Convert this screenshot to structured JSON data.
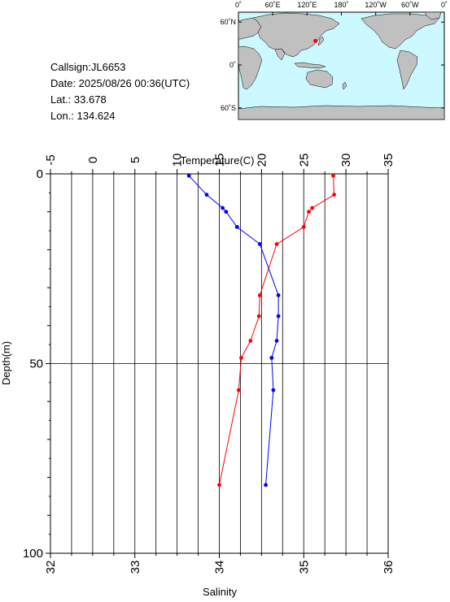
{
  "station": {
    "callsign": "Callsign:JL6653",
    "date": "Date:  2025/08/26 00:36(UTC)",
    "lat": "Lat.:  33.678",
    "lon": "Lon.:  134.624"
  },
  "map": {
    "ocean_color": "#ccf8ff",
    "land_color": "#c0c0c0",
    "marker_color": "#ff0000",
    "lon_ticks": [
      "0˚",
      "60˚E",
      "120˚E",
      "180˚",
      "120˚W",
      "60˚W",
      "0˚"
    ],
    "lat_ticks": [
      "60˚N",
      "0˚",
      "60˚S"
    ],
    "marker": {
      "lat": 33.678,
      "lon": 134.624
    }
  },
  "chart_data": {
    "type": "line",
    "temperature_axis": {
      "label": "Temperature(C)",
      "range": [
        -5,
        35
      ],
      "ticks": [
        -5,
        0,
        5,
        10,
        15,
        20,
        25,
        30,
        35
      ]
    },
    "salinity_axis": {
      "label": "Salinity",
      "range": [
        32,
        36
      ],
      "ticks": [
        32,
        33,
        34,
        35,
        36
      ]
    },
    "depth_axis": {
      "label": "Depth(m)",
      "range": [
        0,
        100
      ],
      "ticks": [
        0,
        50,
        100
      ],
      "inverted": true
    },
    "grid": true,
    "series": [
      {
        "quantity": "temperature",
        "color": "#ff0000",
        "points": [
          {
            "x": 28.5,
            "depth": 0.5
          },
          {
            "x": 28.6,
            "depth": 5.5
          },
          {
            "x": 26.0,
            "depth": 9.0
          },
          {
            "x": 25.6,
            "depth": 10.0
          },
          {
            "x": 25.0,
            "depth": 14.0
          },
          {
            "x": 21.8,
            "depth": 18.5
          },
          {
            "x": 19.8,
            "depth": 32.0
          },
          {
            "x": 19.7,
            "depth": 37.5
          },
          {
            "x": 18.7,
            "depth": 44.0
          },
          {
            "x": 17.6,
            "depth": 48.5
          },
          {
            "x": 17.3,
            "depth": 57.0
          },
          {
            "x": 15.0,
            "depth": 82.0
          }
        ]
      },
      {
        "quantity": "salinity",
        "color": "#0000ff",
        "points": [
          {
            "x": 33.64,
            "depth": 0.5
          },
          {
            "x": 33.85,
            "depth": 5.5
          },
          {
            "x": 34.04,
            "depth": 9.0
          },
          {
            "x": 34.08,
            "depth": 10.0
          },
          {
            "x": 34.21,
            "depth": 14.0
          },
          {
            "x": 34.48,
            "depth": 18.5
          },
          {
            "x": 34.7,
            "depth": 32.0
          },
          {
            "x": 34.7,
            "depth": 37.5
          },
          {
            "x": 34.68,
            "depth": 44.0
          },
          {
            "x": 34.62,
            "depth": 48.5
          },
          {
            "x": 34.64,
            "depth": 57.0
          },
          {
            "x": 34.55,
            "depth": 82.0
          }
        ]
      }
    ]
  }
}
